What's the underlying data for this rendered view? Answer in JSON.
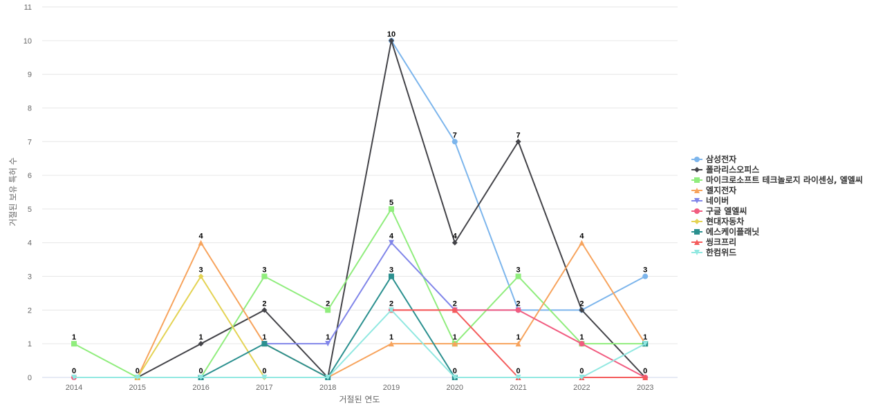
{
  "chart_data": {
    "type": "line",
    "xlabel": "거절된 연도",
    "ylabel": "거절된 보유 특허 수",
    "x": [
      "2014",
      "2015",
      "2016",
      "2017",
      "2018",
      "2019",
      "2020",
      "2021",
      "2022",
      "2023"
    ],
    "ylim": [
      0,
      11
    ],
    "yticks": [
      0,
      1,
      2,
      3,
      4,
      5,
      6,
      7,
      8,
      9,
      10,
      11
    ],
    "grid": true,
    "legend": "right",
    "series": [
      {
        "name": "삼성전자",
        "color": "#7cb5ec",
        "marker": "circle",
        "values": [
          null,
          null,
          null,
          null,
          null,
          10,
          7,
          2,
          2,
          3
        ]
      },
      {
        "name": "폴라리스오피스",
        "color": "#434348",
        "marker": "diamond",
        "values": [
          null,
          0,
          1,
          2,
          0,
          10,
          4,
          7,
          2,
          0
        ]
      },
      {
        "name": "마이크로소프트 테크놀로지 라이센싱, 엘엘씨",
        "color": "#90ed7d",
        "marker": "square",
        "values": [
          1,
          0,
          0,
          3,
          2,
          5,
          1,
          3,
          1,
          1
        ]
      },
      {
        "name": "엘지전자",
        "color": "#f7a35c",
        "marker": "triangle",
        "values": [
          null,
          0,
          4,
          1,
          0,
          1,
          1,
          1,
          4,
          1
        ]
      },
      {
        "name": "네이버",
        "color": "#8085e9",
        "marker": "triangle-down",
        "values": [
          null,
          null,
          null,
          1,
          1,
          4,
          2,
          2,
          null,
          null
        ]
      },
      {
        "name": "구글 엘엘씨",
        "color": "#f15c80",
        "marker": "circle",
        "values": [
          0,
          null,
          null,
          null,
          null,
          2,
          2,
          2,
          1,
          0
        ]
      },
      {
        "name": "현대자동차",
        "color": "#e4d354",
        "marker": "diamond",
        "values": [
          null,
          0,
          3,
          0,
          null,
          null,
          null,
          null,
          null,
          null
        ]
      },
      {
        "name": "에스케이플래닛",
        "color": "#2b908f",
        "marker": "square",
        "values": [
          null,
          null,
          0,
          1,
          0,
          3,
          0,
          null,
          null,
          1
        ]
      },
      {
        "name": "씽크프리",
        "color": "#f45b5b",
        "marker": "triangle",
        "values": [
          null,
          null,
          null,
          null,
          null,
          2,
          2,
          0,
          0,
          0
        ]
      },
      {
        "name": "한컴위드",
        "color": "#91e8e1",
        "marker": "triangle-down",
        "values": [
          0,
          0,
          0,
          0,
          0,
          2,
          0,
          0,
          0,
          1
        ]
      }
    ],
    "data_labels": [
      {
        "x": "2014",
        "value": "1"
      },
      {
        "x": "2014",
        "value": "0"
      },
      {
        "x": "2015",
        "value": "0"
      },
      {
        "x": "2016",
        "value": "4"
      },
      {
        "x": "2016",
        "value": "3"
      },
      {
        "x": "2016",
        "value": "1"
      },
      {
        "x": "2016",
        "value": "0"
      },
      {
        "x": "2017",
        "value": "3"
      },
      {
        "x": "2017",
        "value": "2"
      },
      {
        "x": "2017",
        "value": "1"
      },
      {
        "x": "2017",
        "value": "0"
      },
      {
        "x": "2018",
        "value": "2"
      },
      {
        "x": "2018",
        "value": "1"
      },
      {
        "x": "2019",
        "value": "10"
      },
      {
        "x": "2019",
        "value": "5"
      },
      {
        "x": "2019",
        "value": "4"
      },
      {
        "x": "2019",
        "value": "3"
      },
      {
        "x": "2019",
        "value": "2"
      },
      {
        "x": "2019",
        "value": "1"
      },
      {
        "x": "2020",
        "value": "7"
      },
      {
        "x": "2020",
        "value": "4"
      },
      {
        "x": "2020",
        "value": "2"
      },
      {
        "x": "2020",
        "value": "1"
      },
      {
        "x": "2020",
        "value": "0"
      },
      {
        "x": "2021",
        "value": "7"
      },
      {
        "x": "2021",
        "value": "3"
      },
      {
        "x": "2021",
        "value": "2"
      },
      {
        "x": "2021",
        "value": "1"
      },
      {
        "x": "2021",
        "value": "0"
      },
      {
        "x": "2022",
        "value": "4"
      },
      {
        "x": "2022",
        "value": "2"
      },
      {
        "x": "2022",
        "value": "1"
      },
      {
        "x": "2022",
        "value": "0"
      },
      {
        "x": "2023",
        "value": "3"
      },
      {
        "x": "2023",
        "value": "1"
      },
      {
        "x": "2023",
        "value": "0"
      }
    ]
  }
}
